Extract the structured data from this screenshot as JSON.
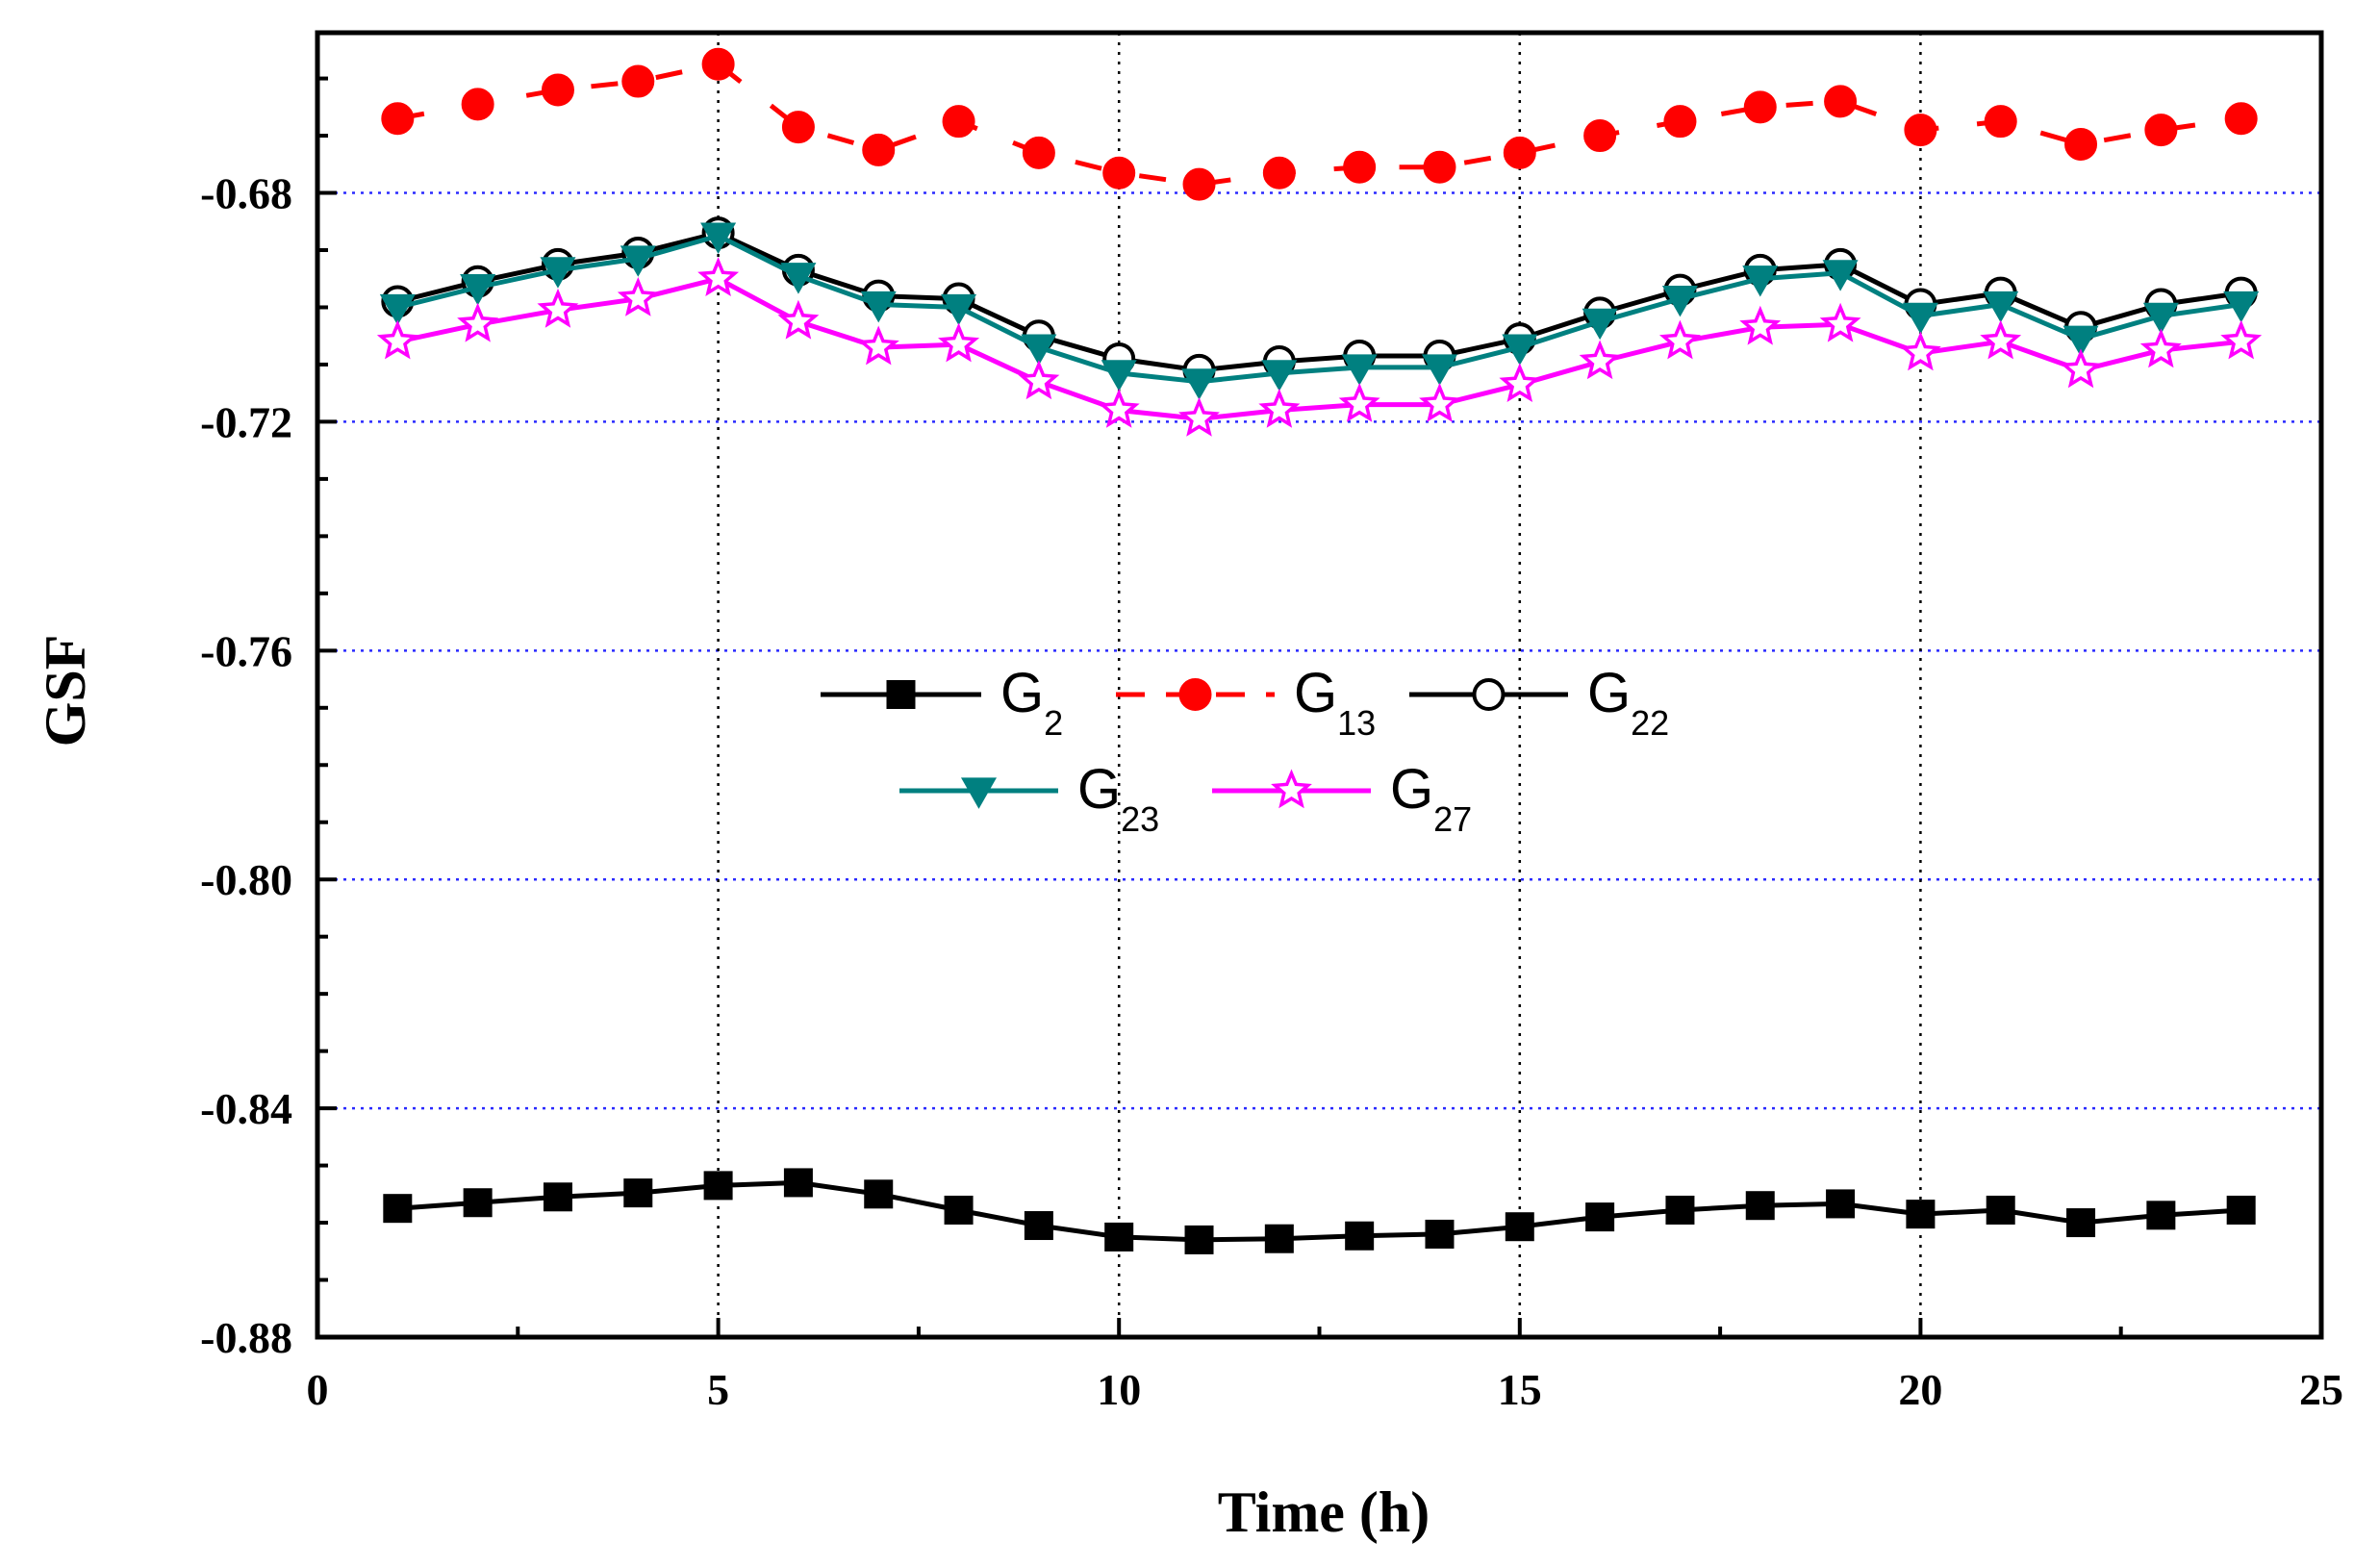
{
  "chart_data": {
    "type": "line",
    "title": "",
    "xlabel": "Time (h)",
    "ylabel": "GSF",
    "xlim": [
      0,
      25
    ],
    "ylim": [
      -0.88,
      -0.652
    ],
    "x_ticks": [
      0,
      5,
      10,
      15,
      20,
      25
    ],
    "x_tick_labels": [
      "0",
      "5",
      "10",
      "15",
      "20",
      "25"
    ],
    "y_ticks": [
      -0.88,
      -0.84,
      -0.8,
      -0.76,
      -0.72,
      -0.68
    ],
    "y_tick_labels": [
      "-0.88",
      "-0.84",
      "-0.80",
      "-0.76",
      "-0.72",
      "-0.68"
    ],
    "grid": {
      "vertical": [
        5,
        10,
        15,
        20
      ],
      "horizontal": [
        -0.84,
        -0.8,
        -0.76,
        -0.72,
        -0.68
      ]
    },
    "legend_position": "center",
    "x": [
      1,
      2,
      3,
      4,
      5,
      6,
      7,
      8,
      9,
      10,
      11,
      12,
      13,
      14,
      15,
      16,
      17,
      18,
      19,
      20,
      21,
      22,
      23,
      24
    ],
    "series": [
      {
        "name": "G2",
        "base": "G",
        "sub": "2",
        "color": "#000000",
        "marker": "square",
        "dash": false,
        "values": [
          -0.8575,
          -0.8565,
          -0.8555,
          -0.8548,
          -0.8535,
          -0.853,
          -0.855,
          -0.8578,
          -0.8605,
          -0.8625,
          -0.863,
          -0.8628,
          -0.8623,
          -0.862,
          -0.8607,
          -0.859,
          -0.8578,
          -0.857,
          -0.8567,
          -0.8585,
          -0.8578,
          -0.86,
          -0.8587,
          -0.8578
        ]
      },
      {
        "name": "G13",
        "base": "G",
        "sub": "13",
        "color": "#ff0000",
        "marker": "circle-filled",
        "dash": true,
        "values": [
          -0.667,
          -0.6645,
          -0.662,
          -0.6605,
          -0.6575,
          -0.6685,
          -0.6725,
          -0.6675,
          -0.673,
          -0.6765,
          -0.6785,
          -0.6765,
          -0.6755,
          -0.6755,
          -0.673,
          -0.67,
          -0.6675,
          -0.665,
          -0.664,
          -0.669,
          -0.6675,
          -0.6715,
          -0.669,
          -0.667
        ]
      },
      {
        "name": "G22",
        "base": "G",
        "sub": "22",
        "color": "#000000",
        "marker": "circle-open",
        "dash": false,
        "values": [
          -0.699,
          -0.6955,
          -0.6925,
          -0.6905,
          -0.687,
          -0.6935,
          -0.698,
          -0.6985,
          -0.705,
          -0.709,
          -0.711,
          -0.7095,
          -0.7085,
          -0.7085,
          -0.7055,
          -0.701,
          -0.697,
          -0.6935,
          -0.6925,
          -0.6995,
          -0.6975,
          -0.7035,
          -0.6995,
          -0.6975
        ]
      },
      {
        "name": "G23",
        "base": "G",
        "sub": "23",
        "color": "#008080",
        "marker": "triangle-down",
        "dash": false,
        "values": [
          -0.7,
          -0.6965,
          -0.6935,
          -0.6915,
          -0.6875,
          -0.6945,
          -0.6995,
          -0.7,
          -0.707,
          -0.7115,
          -0.713,
          -0.7115,
          -0.7105,
          -0.7105,
          -0.707,
          -0.7025,
          -0.6985,
          -0.695,
          -0.694,
          -0.7015,
          -0.6995,
          -0.7055,
          -0.7015,
          -0.6995
        ]
      },
      {
        "name": "G27",
        "base": "G",
        "sub": "27",
        "color": "#ff00ff",
        "marker": "star-open",
        "dash": false,
        "values": [
          -0.706,
          -0.703,
          -0.7005,
          -0.6985,
          -0.695,
          -0.7025,
          -0.707,
          -0.7065,
          -0.713,
          -0.718,
          -0.7195,
          -0.718,
          -0.717,
          -0.717,
          -0.7135,
          -0.7095,
          -0.706,
          -0.7035,
          -0.703,
          -0.708,
          -0.706,
          -0.711,
          -0.7075,
          -0.706
        ]
      }
    ]
  }
}
